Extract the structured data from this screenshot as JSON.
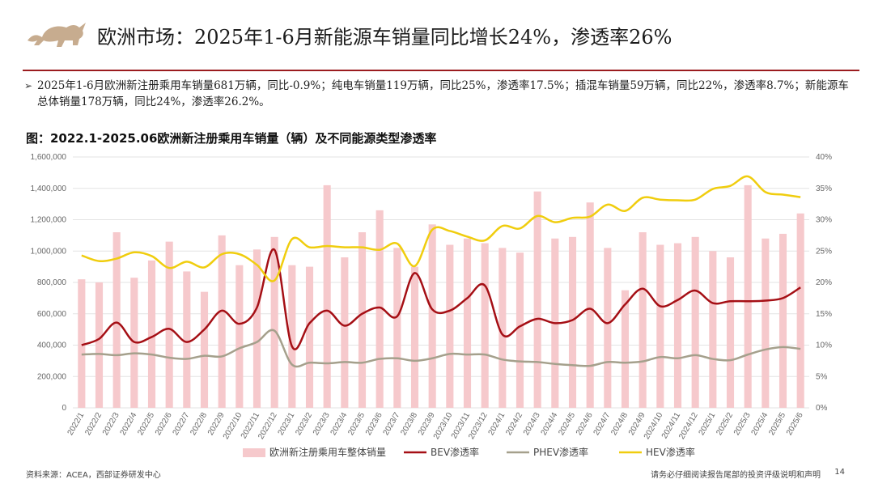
{
  "header": {
    "title": "欧洲市场：2025年1-6月新能源车销量同比增长24%，渗透率26%",
    "accent_color": "#9b1c1f",
    "logo_icon": "bull-icon"
  },
  "bullet": {
    "icon": "triangle-right-icon",
    "text": "2025年1-6月欧洲新注册乘用车销量681万辆，同比-0.9%；纯电车销量119万辆，同比25%，渗透率17.5%；插混车销量59万辆，同比22%，渗透率8.7%；新能源车总体销量178万辆，同比24%，渗透率26.2%。"
  },
  "chart_title": "图：2022.1-2025.06欧洲新注册乘用车销量（辆）及不同能源类型渗透率",
  "chart_data": {
    "type": "bar+line",
    "categories": [
      "2022/1",
      "2022/2",
      "2022/3",
      "2022/4",
      "2022/5",
      "2022/6",
      "2022/7",
      "2022/8",
      "2022/9",
      "2022/10",
      "2022/11",
      "2022/12",
      "2023/1",
      "2023/2",
      "2023/3",
      "2023/4",
      "2023/5",
      "2023/6",
      "2023/7",
      "2023/8",
      "2023/9",
      "2023/10",
      "2023/11",
      "2023/12",
      "2024/1",
      "2024/2",
      "2024/3",
      "2024/4",
      "2024/5",
      "2024/6",
      "2024/7",
      "2024/8",
      "2024/9",
      "2024/10",
      "2024/11",
      "2024/12",
      "2025/1",
      "2025/2",
      "2025/3",
      "2025/4",
      "2025/5",
      "2025/6"
    ],
    "left_axis": {
      "min": 0,
      "max": 1600000,
      "ticks": [
        "0",
        "200,000",
        "400,000",
        "600,000",
        "800,000",
        "1,000,000",
        "1,200,000",
        "1,400,000",
        "1,600,000"
      ]
    },
    "right_axis": {
      "min": 0,
      "max": 40,
      "ticks": [
        "0%",
        "5%",
        "10%",
        "15%",
        "20%",
        "25%",
        "30%",
        "35%",
        "40%"
      ]
    },
    "bars": {
      "name": "欧洲新注册乘用车整体销量",
      "color": "#f6c9cc",
      "values": [
        820000,
        800000,
        1120000,
        830000,
        940000,
        1060000,
        870000,
        740000,
        1100000,
        910000,
        1010000,
        1090000,
        910000,
        900000,
        1420000,
        960000,
        1120000,
        1260000,
        1020000,
        900000,
        1170000,
        1040000,
        1080000,
        1050000,
        1020000,
        990000,
        1380000,
        1080000,
        1090000,
        1310000,
        1020000,
        750000,
        1120000,
        1040000,
        1050000,
        1090000,
        1000000,
        960000,
        1420000,
        1080000,
        1110000,
        1240000
      ]
    },
    "series": [
      {
        "name": "BEV渗透率",
        "color": "#a50f15",
        "axis": "right",
        "values": [
          10.0,
          11.0,
          13.6,
          10.5,
          11.3,
          12.6,
          10.5,
          12.5,
          15.5,
          13.4,
          16.0,
          25.2,
          9.8,
          13.5,
          15.5,
          13.1,
          15.0,
          16.0,
          14.6,
          21.5,
          15.7,
          15.5,
          17.5,
          19.5,
          11.7,
          13.0,
          14.2,
          13.5,
          14.0,
          15.8,
          13.5,
          16.5,
          19.0,
          16.2,
          17.2,
          18.7,
          16.7,
          17.0,
          17.0,
          17.1,
          17.5,
          19.2
        ]
      },
      {
        "name": "PHEV渗透率",
        "color": "#a5a08c",
        "axis": "right",
        "values": [
          8.5,
          8.6,
          8.4,
          8.7,
          8.5,
          8.0,
          7.8,
          8.3,
          8.2,
          9.5,
          10.5,
          12.3,
          6.9,
          7.2,
          7.1,
          7.3,
          7.2,
          7.8,
          7.9,
          7.5,
          7.9,
          8.6,
          8.5,
          8.5,
          7.7,
          7.4,
          7.3,
          7.0,
          6.8,
          6.7,
          7.3,
          7.2,
          7.4,
          8.1,
          7.9,
          8.4,
          7.8,
          7.6,
          8.5,
          9.3,
          9.7,
          9.4
        ]
      },
      {
        "name": "HEV渗透率",
        "color": "#f0cd0e",
        "axis": "right",
        "values": [
          24.3,
          23.4,
          23.8,
          24.8,
          24.2,
          22.3,
          23.3,
          22.4,
          24.5,
          24.5,
          22.8,
          20.3,
          26.9,
          25.6,
          25.8,
          25.6,
          25.6,
          25.2,
          26.2,
          22.6,
          28.4,
          28.2,
          27.3,
          26.7,
          29.0,
          28.6,
          30.6,
          29.6,
          30.3,
          30.5,
          32.4,
          31.4,
          33.5,
          33.2,
          33.1,
          33.2,
          34.9,
          35.4,
          36.9,
          34.4,
          34.0,
          33.6
        ]
      }
    ],
    "legend": [
      {
        "name": "欧洲新注册乘用车整体销量",
        "kind": "bar",
        "color": "#f6c9cc"
      },
      {
        "name": "BEV渗透率",
        "kind": "line",
        "color": "#a50f15"
      },
      {
        "name": "PHEV渗透率",
        "kind": "line",
        "color": "#a5a08c"
      },
      {
        "name": "HEV渗透率",
        "kind": "line",
        "color": "#f0cd0e"
      }
    ]
  },
  "footer": {
    "source": "资料来源：ACEA，西部证券研发中心",
    "disclaimer": "请务必仔细阅读报告尾部的投资评级说明和声明",
    "page": "14"
  }
}
